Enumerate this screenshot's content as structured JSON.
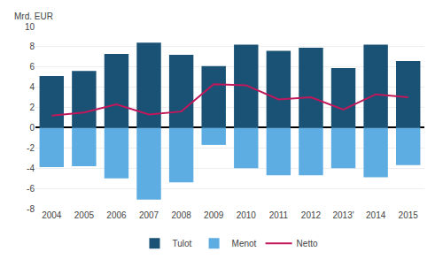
{
  "chart_data": {
    "type": "bar",
    "ylabel": "Mrd. EUR",
    "categories": [
      "2004",
      "2005",
      "2006",
      "2007",
      "2008",
      "2009",
      "2010",
      "2011",
      "2012",
      "2013'",
      "2014",
      "2015"
    ],
    "series": [
      {
        "name": "Tulot",
        "type": "bar",
        "color": "#1a5276",
        "values": [
          5.1,
          5.6,
          7.3,
          8.4,
          7.2,
          6.1,
          8.2,
          7.6,
          7.9,
          5.9,
          8.2,
          6.6
        ]
      },
      {
        "name": "Menot",
        "type": "bar",
        "color": "#5dade2",
        "values": [
          -3.9,
          -3.8,
          -5.0,
          -7.1,
          -5.4,
          -1.7,
          -4.0,
          -4.7,
          -4.7,
          -4.0,
          -4.9,
          -3.7
        ]
      },
      {
        "name": "Netto",
        "type": "line",
        "color": "#c0185a",
        "values": [
          1.2,
          1.5,
          2.3,
          1.3,
          1.6,
          4.3,
          4.2,
          2.8,
          3.0,
          1.8,
          3.3,
          3.0
        ]
      }
    ],
    "ylim": [
      -8,
      10
    ],
    "yticks": [
      -8,
      -6,
      -4,
      -2,
      0,
      2,
      4,
      6,
      8,
      10
    ],
    "grid": true,
    "legend": "bottom"
  }
}
